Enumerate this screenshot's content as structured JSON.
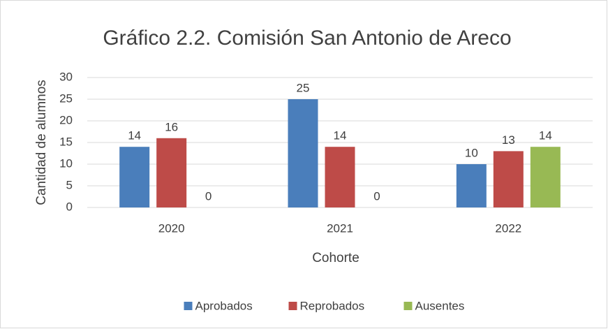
{
  "chart_data": {
    "type": "bar",
    "title": "Gráfico 2.2. Comisión San Antonio de Areco",
    "x_label": "Cohorte",
    "y_label": "Cantidad de alumnos",
    "categories": [
      "2020",
      "2021",
      "2022"
    ],
    "series": [
      {
        "name": "Aprobados",
        "color": "#4a7ebb",
        "values": [
          14,
          25,
          10
        ]
      },
      {
        "name": "Reprobados",
        "color": "#be4b48",
        "values": [
          16,
          14,
          13
        ]
      },
      {
        "name": "Ausentes",
        "color": "#98b954",
        "values": [
          0,
          0,
          14
        ]
      }
    ],
    "ylim": [
      0,
      30
    ],
    "yticks": [
      0,
      5,
      10,
      15,
      20,
      25,
      30
    ],
    "grid": true,
    "legend": "bottom"
  }
}
